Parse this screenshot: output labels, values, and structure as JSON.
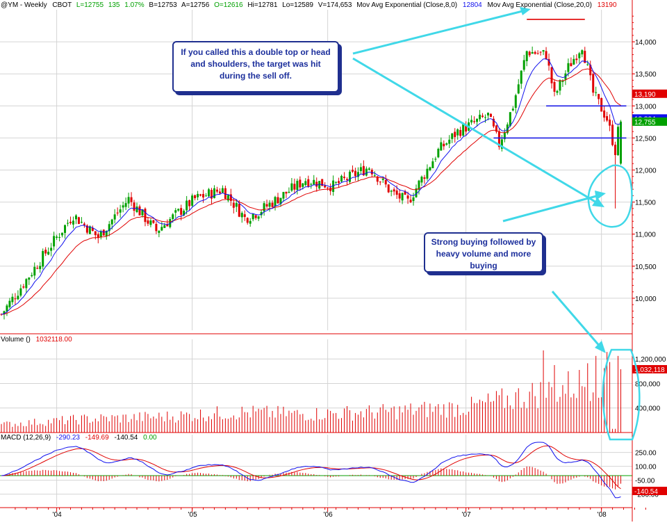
{
  "header": {
    "symbol": "@YM - Weekly",
    "exchange": "CBOT",
    "last": "L=12755",
    "change": "135",
    "change_pct": "1.07%",
    "bid": "B=12753",
    "ask": "A=12756",
    "open": "O=12616",
    "high": "Hi=12781",
    "low": "Lo=12589",
    "volume": "V=174,653",
    "ma_fast_label": "Mov Avg Exponential (Close,8,0)",
    "ma_fast_value": "12804",
    "ma_slow_label": "Mov Avg Exponential (Close,20,0)",
    "ma_slow_value": "13190"
  },
  "volume_header": {
    "label": "Volume ()",
    "value": "1032118.00"
  },
  "macd_header": {
    "label": "MACD (12,26,9)",
    "macd": "-290.23",
    "signal": "-149.69",
    "hist": "-140.54",
    "zero": "0.00"
  },
  "annotations": {
    "top_callout": "If you called this a double top or head and shoulders, the target was hit during the sell off.",
    "bottom_callout": "Strong buying followed by heavy volume and more buying"
  },
  "colors": {
    "up": "#00a000",
    "down": "#e00000",
    "ma_fast": "#1010ee",
    "ma_slow": "#e00000",
    "axis": "#e00000",
    "grid": "#d4d4d4",
    "annotation": "#40d8e8",
    "level": "#1e1ee6"
  },
  "chart_data": [
    {
      "type": "candlestick",
      "title": "@YM - Weekly",
      "x": [
        "'04",
        "'05",
        "'06",
        "'07",
        "'08"
      ],
      "ylim": [
        9500,
        14500
      ],
      "yticks": [
        "14,000",
        "13,500",
        "13,000",
        "12,500",
        "12,000",
        "11,500",
        "11,000",
        "10,500",
        "10,000"
      ],
      "price_labels": [
        {
          "label": "13,190",
          "value": 13190,
          "color": "#e00000"
        },
        {
          "label": "12,804",
          "value": 12804,
          "color": "#1010ee"
        },
        {
          "label": "12,755",
          "value": 12755,
          "color": "#00a000"
        }
      ],
      "anchors": [
        {
          "w": 0,
          "v": 9750
        },
        {
          "w": 20,
          "v": 10950
        },
        {
          "w": 26,
          "v": 11300
        },
        {
          "w": 35,
          "v": 10950
        },
        {
          "w": 46,
          "v": 11550
        },
        {
          "w": 56,
          "v": 11050
        },
        {
          "w": 70,
          "v": 11550
        },
        {
          "w": 80,
          "v": 11700
        },
        {
          "w": 88,
          "v": 11250
        },
        {
          "w": 93,
          "v": 11350
        },
        {
          "w": 110,
          "v": 11850
        },
        {
          "w": 120,
          "v": 11750
        },
        {
          "w": 133,
          "v": 12050
        },
        {
          "w": 141,
          "v": 11650
        },
        {
          "w": 147,
          "v": 11500
        },
        {
          "w": 158,
          "v": 12300
        },
        {
          "w": 165,
          "v": 12600
        },
        {
          "w": 176,
          "v": 12850
        },
        {
          "w": 180,
          "v": 12400
        },
        {
          "w": 185,
          "v": 13000
        },
        {
          "w": 190,
          "v": 13850
        },
        {
          "w": 197,
          "v": 13800
        },
        {
          "w": 200,
          "v": 13150
        },
        {
          "w": 205,
          "v": 13600
        },
        {
          "w": 210,
          "v": 13950
        },
        {
          "w": 214,
          "v": 13200
        },
        {
          "w": 219,
          "v": 12800
        },
        {
          "w": 222,
          "v": 12300
        },
        {
          "w": 223,
          "v": 12600
        },
        {
          "w": 224,
          "v": 12755
        }
      ],
      "levels": [
        {
          "name": "peak-line",
          "value": 14350,
          "w_start": 190,
          "w_end": 211,
          "color": "#e00000"
        },
        {
          "name": "support-line-upper",
          "value": 13000,
          "w_start": 197,
          "w_end": 226,
          "color": "#1e1ee6"
        },
        {
          "name": "neckline",
          "value": 12500,
          "w_start": 178,
          "w_end": 226,
          "color": "#1e1ee6"
        }
      ]
    },
    {
      "type": "bar",
      "title": "Volume ()",
      "last_value": 1032118,
      "ylim": [
        0,
        1350000
      ],
      "yticks": [
        "1,200,000",
        "800,000",
        "400,000"
      ],
      "value_label": "1,032,118",
      "anchors": [
        {
          "w": 0,
          "v": 130000
        },
        {
          "w": 30,
          "v": 220000
        },
        {
          "w": 60,
          "v": 260000
        },
        {
          "w": 85,
          "v": 330000
        },
        {
          "w": 110,
          "v": 300000
        },
        {
          "w": 140,
          "v": 340000
        },
        {
          "w": 170,
          "v": 420000
        },
        {
          "w": 195,
          "v": 650000
        },
        {
          "w": 210,
          "v": 800000
        },
        {
          "w": 224,
          "v": 1032118
        }
      ],
      "spikes": [
        {
          "w": 196,
          "v": 1380000
        },
        {
          "w": 200,
          "v": 1100000
        },
        {
          "w": 212,
          "v": 1130000
        },
        {
          "w": 215,
          "v": 1250000
        },
        {
          "w": 218,
          "v": 1050000
        },
        {
          "w": 220,
          "v": 1150000
        },
        {
          "w": 223,
          "v": 1250000
        },
        {
          "w": 224,
          "v": 1032118
        }
      ]
    },
    {
      "type": "line",
      "title": "MACD (12,26,9)",
      "ylim": [
        -330,
        330
      ],
      "yticks": [
        "250.00",
        "100.00",
        "-50.00",
        "-200.00"
      ],
      "value_label": "-140.54",
      "series": [
        {
          "name": "MACD",
          "color": "#1010ee",
          "last": -290.23
        },
        {
          "name": "Signal",
          "color": "#e00000",
          "last": -149.69
        },
        {
          "name": "Hist",
          "color": "#e00000",
          "last": -140.54
        }
      ]
    }
  ]
}
